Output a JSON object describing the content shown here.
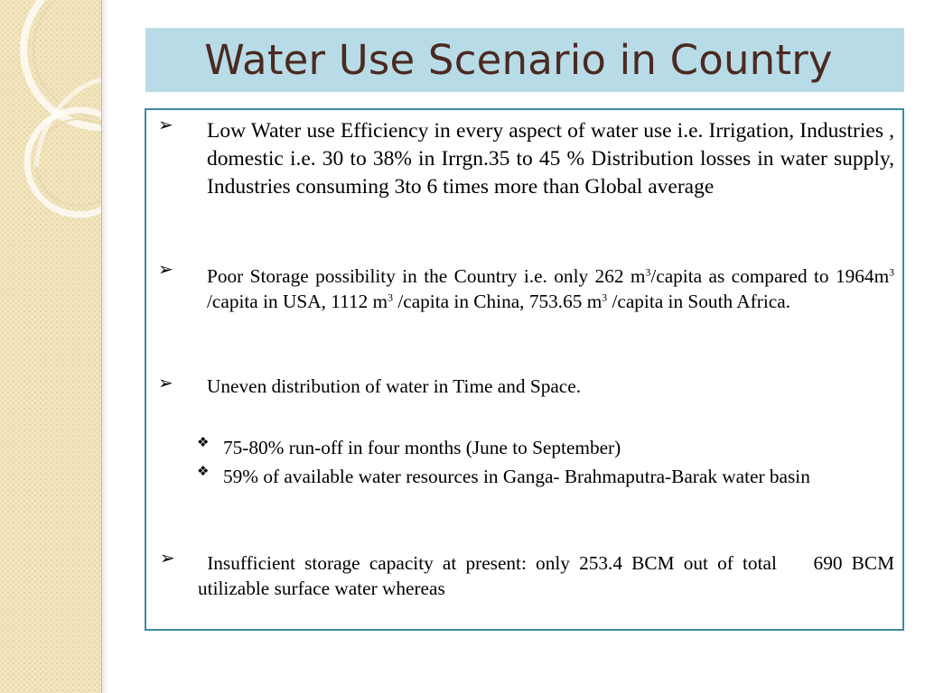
{
  "slide": {
    "title": "Water Use Scenario in Country"
  },
  "bullets": [
    {
      "marker": "➢",
      "text": "Low Water use Efficiency in every aspect of water use  i.e. Irrigation, Industries , domestic  i.e. 30 to 38% in Irrgn.35 to 45 % Distribution  losses in water supply, Industries consuming 3to 6 times more than Global average"
    },
    {
      "marker": "➢",
      "parts": [
        "Poor Storage possibility in the Country i.e. only 262 m",
        "3",
        "/capita as compared to 1964m",
        "3",
        " /capita  in USA, 1112 m",
        "3",
        " /capita in China, 753.65 m",
        "3",
        " /capita in South Africa."
      ]
    },
    {
      "marker": "➢",
      "text": "Uneven distribution of water in Time and Space."
    },
    {
      "marker": "➢",
      "text": " Insufficient storage capacity at present: only 253.4 BCM out of total    690 BCM utilizable surface water whereas"
    }
  ],
  "sub_bullets": [
    {
      "marker": "❖",
      "text": "75-80% run-off in four months (June to September)"
    },
    {
      "marker": "❖",
      "text": "59% of available water resources in Ganga- Brahmaputra-Barak water basin"
    }
  ],
  "colors": {
    "title_bar": "#b8dce7",
    "title_text": "#4b2a21",
    "box_border": "#3d8aa0",
    "side_panel": "#f3e6bf"
  }
}
